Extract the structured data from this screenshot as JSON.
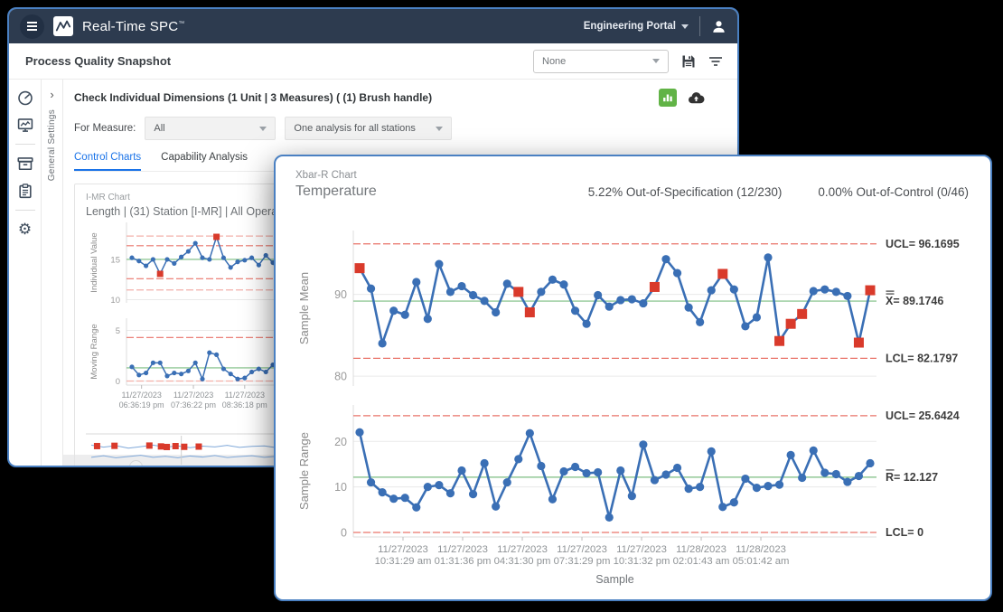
{
  "app": {
    "brand": "Real-Time SPC",
    "brand_mark": "™",
    "portal": "Engineering Portal",
    "title": "Process Quality Snapshot",
    "report_select": "None"
  },
  "sidebar": {
    "icons": [
      "dashboard-gauge",
      "monitor-chart",
      "archive-box",
      "clipboard",
      "settings-gear"
    ]
  },
  "settings_rail": {
    "label": "General Settings",
    "chevron": "›"
  },
  "panel": {
    "title": "Check Individual Dimensions (1 Unit | 3 Measures) ( (1) Brush handle)",
    "for_measure_label": "For Measure:",
    "measure_value": "All",
    "analysis_value": "One analysis for all stations",
    "tabs": [
      {
        "label": "Control Charts",
        "active": true
      },
      {
        "label": "Capability Analysis",
        "active": false
      }
    ],
    "actions": [
      "bar-chart-green-button",
      "cloud-upload-icon"
    ]
  },
  "imr": {
    "chart_label": "I-MR Chart",
    "subtitle": "Length | (31) Station [I-MR] | All Operators",
    "nav_back": "◂"
  },
  "overlay": {
    "chart_label": "Xbar-R Chart",
    "title": "Temperature",
    "stat_oos": "5.22% Out-of-Specification (12/230)",
    "stat_ooc": "0.00% Out-of-Control (0/46)"
  },
  "colors": {
    "line": "#3a6fb5",
    "marker": "#d93a2b",
    "red": "#e9746a",
    "red_light": "#f3b0aa",
    "green": "#7bbd80",
    "window_border": "#4a80c2",
    "header_navy": "#2d3b4f",
    "tab_active": "#1a73e8"
  },
  "chart_data": [
    {
      "type": "line",
      "id": "xbar-mean",
      "ylabel": "Sample Mean",
      "ylim": [
        78.8,
        97.8
      ],
      "yticks": [
        80,
        90
      ],
      "values": [
        93.2,
        90.7,
        84.0,
        88.0,
        87.5,
        91.5,
        87.0,
        93.7,
        90.3,
        91.0,
        89.9,
        89.2,
        87.8,
        91.3,
        90.3,
        87.8,
        90.3,
        91.8,
        91.2,
        88.0,
        86.4,
        89.9,
        88.5,
        89.3,
        89.4,
        88.9,
        90.9,
        94.3,
        92.6,
        88.4,
        86.6,
        90.5,
        92.5,
        90.6,
        86.1,
        87.2,
        94.5,
        84.3,
        86.4,
        87.6,
        90.4,
        90.6,
        90.3,
        89.8,
        84.1,
        90.5
      ],
      "out_of_spec_indices": [
        0,
        14,
        15,
        26,
        32,
        37,
        38,
        39,
        44,
        45
      ],
      "limits": [
        {
          "value": 96.1695,
          "label": "UCL= 96.1695",
          "color": "red"
        },
        {
          "value": 89.1746,
          "label": "X= 89.1746",
          "color": "green",
          "overlines": 2
        },
        {
          "value": 82.1797,
          "label": "LCL= 82.1797",
          "color": "red"
        }
      ]
    },
    {
      "type": "line",
      "id": "xbar-range",
      "ylabel": "Sample Range",
      "xlabel": "Sample",
      "ylim": [
        -1,
        28
      ],
      "yticks": [
        0,
        10,
        20
      ],
      "values": [
        22.0,
        11.0,
        8.8,
        7.4,
        7.6,
        5.5,
        10.0,
        10.4,
        8.6,
        13.6,
        8.4,
        15.2,
        5.7,
        11.0,
        16.1,
        21.8,
        14.6,
        7.3,
        13.4,
        14.4,
        13.0,
        13.2,
        3.3,
        13.6,
        8.0,
        19.3,
        11.5,
        12.7,
        14.2,
        9.6,
        10.0,
        17.8,
        5.6,
        6.6,
        11.8,
        9.8,
        10.2,
        10.5,
        17.0,
        12.0,
        18.0,
        13.1,
        12.8,
        11.1,
        12.4,
        15.2
      ],
      "out_of_spec_indices": [],
      "limits": [
        {
          "value": 25.6424,
          "label": "UCL= 25.6424",
          "color": "red"
        },
        {
          "value": 12.127,
          "label": "R= 12.127",
          "color": "green",
          "overlines": 1
        },
        {
          "value": 0,
          "label": "LCL= 0",
          "color": "red"
        }
      ],
      "xticks": [
        {
          "frac": 0.095,
          "l1": "11/27/2023",
          "l2": "10:31:29 am"
        },
        {
          "frac": 0.209,
          "l1": "11/27/2023",
          "l2": "01:31:36 pm"
        },
        {
          "frac": 0.323,
          "l1": "11/27/2023",
          "l2": "04:31:30 pm"
        },
        {
          "frac": 0.437,
          "l1": "11/27/2023",
          "l2": "07:31:29 pm"
        },
        {
          "frac": 0.551,
          "l1": "11/27/2023",
          "l2": "10:31:32 pm"
        },
        {
          "frac": 0.665,
          "l1": "11/28/2023",
          "l2": "02:01:43 am"
        },
        {
          "frac": 0.779,
          "l1": "11/28/2023",
          "l2": "05:01:42 am"
        }
      ]
    },
    {
      "type": "line",
      "id": "imr-individual",
      "ylabel": "Individual Value",
      "ylim": [
        9.6,
        19.6
      ],
      "yticks": [
        15,
        10
      ],
      "values": [
        15.2,
        14.8,
        14.2,
        15.0,
        13.2,
        15.0,
        14.5,
        15.3,
        16.0,
        17.0,
        15.2,
        15.0,
        17.8,
        15.2,
        14.0,
        14.7,
        14.9,
        15.2,
        14.3,
        15.5,
        14.6,
        13.0,
        14.0,
        14.5,
        13.8,
        15.3,
        14.2,
        13.9,
        15.4,
        14.3,
        15.5,
        14.5,
        15.0,
        13.7,
        17.2,
        14.9,
        15.1,
        14.6,
        15.3,
        14.8
      ],
      "out_of_spec_indices": [
        4,
        12,
        21
      ],
      "limits": [
        {
          "value": 17.9,
          "color": "red_light"
        },
        {
          "value": 16.7,
          "color": "red"
        },
        {
          "value": 15.0,
          "color": "green"
        },
        {
          "value": 12.6,
          "color": "red"
        },
        {
          "value": 11.2,
          "color": "red_light"
        }
      ]
    },
    {
      "type": "line",
      "id": "imr-moving-range",
      "ylabel": "Moving Range",
      "ylim": [
        -0.4,
        6.2
      ],
      "yticks": [
        5,
        0
      ],
      "values": [
        1.4,
        0.6,
        0.8,
        1.8,
        1.8,
        0.5,
        0.8,
        0.7,
        1.0,
        1.8,
        0.2,
        2.8,
        2.6,
        1.2,
        0.7,
        0.2,
        0.3,
        0.9,
        1.2,
        0.9,
        1.6,
        2.0,
        1.0,
        0.5,
        1.5,
        1.1,
        0.3,
        1.5,
        1.1,
        1.2,
        1.0,
        0.5,
        1.3,
        3.5,
        2.3,
        0.2,
        0.5,
        0.7,
        0.5
      ],
      "out_of_spec_indices": [],
      "limits": [
        {
          "value": 4.3,
          "color": "red"
        },
        {
          "value": 1.3,
          "color": "green"
        },
        {
          "value": 0,
          "color": "red_light"
        }
      ],
      "xticks": [
        {
          "frac": 0.027,
          "l1": "11/27/2023",
          "l2": "06:36:19 pm"
        },
        {
          "frac": 0.12,
          "l1": "11/27/2023",
          "l2": "07:36:22 pm"
        },
        {
          "frac": 0.212,
          "l1": "11/27/2023",
          "l2": "08:36:18 pm"
        }
      ]
    },
    {
      "type": "navigator",
      "id": "imr-navigator",
      "line1": [
        0.3,
        0.38,
        0.32,
        0.42,
        0.36,
        0.3,
        0.38,
        0.33,
        0.4,
        0.34,
        0.37,
        0.31,
        0.39,
        0.35,
        0.33,
        0.4,
        0.32,
        0.36,
        0.42,
        0.35,
        0.3,
        0.37,
        0.33,
        0.39,
        0.34,
        0.38,
        0.31,
        0.36,
        0.4,
        0.33,
        0.37,
        0.32,
        0.38,
        0.35,
        0.41,
        0.34,
        0.3,
        0.36,
        0.39,
        0.33,
        0.37,
        0.34,
        0.4,
        0.32,
        0.36,
        0.38,
        0.33,
        0.35
      ],
      "line2": [
        0.78,
        0.72,
        0.8,
        0.75,
        0.7,
        0.78,
        0.74,
        0.8,
        0.73,
        0.77,
        0.71,
        0.79,
        0.75,
        0.72,
        0.78,
        0.74,
        0.7,
        0.77,
        0.73,
        0.79,
        0.74,
        0.78,
        0.72,
        0.76,
        0.7,
        0.75,
        0.79,
        0.73,
        0.77,
        0.72,
        0.78,
        0.74,
        0.71,
        0.77,
        0.73,
        0.78,
        0.74,
        0.7,
        0.76,
        0.72,
        0.78,
        0.75,
        0.71,
        0.77,
        0.73,
        0.79,
        0.74,
        0.76
      ],
      "squares": [
        0.01,
        0.04,
        0.1,
        0.12,
        0.13,
        0.145,
        0.16,
        0.185
      ],
      "cursor": 0.155
    }
  ]
}
